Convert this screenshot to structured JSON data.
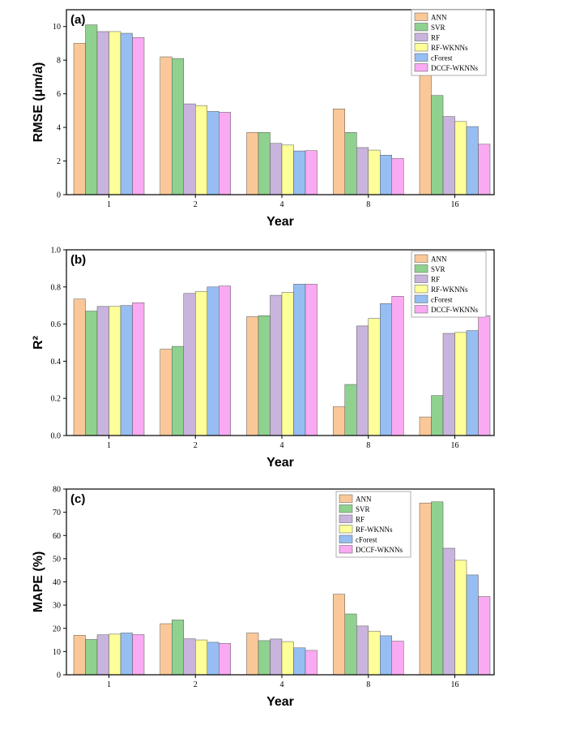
{
  "chart_data": [
    {
      "type": "bar",
      "panel_label": "(a)",
      "categories": [
        "1",
        "2",
        "4",
        "8",
        "16"
      ],
      "xlabel": "Year",
      "ylabel": "RMSE (μm/a)",
      "ylim": [
        0,
        11
      ],
      "yticks": [
        "0",
        "2",
        "4",
        "6",
        "8",
        "10"
      ],
      "legend_position": "top-right",
      "series": [
        {
          "name": "ANN",
          "color": "#FAC898",
          "values": [
            9.0,
            8.2,
            3.7,
            5.1,
            7.2
          ]
        },
        {
          "name": "SVR",
          "color": "#8FD18F",
          "values": [
            10.1,
            8.1,
            3.7,
            3.7,
            5.9
          ]
        },
        {
          "name": "RF",
          "color": "#C8B4DC",
          "values": [
            9.7,
            5.4,
            3.05,
            2.8,
            4.65
          ]
        },
        {
          "name": "RF-WKNNs",
          "color": "#FFFF99",
          "values": [
            9.7,
            5.3,
            2.95,
            2.65,
            4.35
          ]
        },
        {
          "name": "cForest",
          "color": "#96BEF2",
          "values": [
            9.6,
            4.95,
            2.6,
            2.35,
            4.05
          ]
        },
        {
          "name": "DCCF-WKNNs",
          "color": "#F9AAF2",
          "values": [
            9.35,
            4.9,
            2.62,
            2.15,
            3.0
          ]
        }
      ]
    },
    {
      "type": "bar",
      "panel_label": "(b)",
      "categories": [
        "1",
        "2",
        "4",
        "8",
        "16"
      ],
      "xlabel": "Year",
      "ylabel": "R²",
      "ylim": [
        0,
        1.0
      ],
      "yticks": [
        "0.0",
        "0.2",
        "0.4",
        "0.6",
        "0.8",
        "1.0"
      ],
      "legend_position": "top-right",
      "series": [
        {
          "name": "ANN",
          "color": "#FAC898",
          "values": [
            0.735,
            0.465,
            0.64,
            0.155,
            0.1
          ]
        },
        {
          "name": "SVR",
          "color": "#8FD18F",
          "values": [
            0.67,
            0.48,
            0.645,
            0.275,
            0.215
          ]
        },
        {
          "name": "RF",
          "color": "#C8B4DC",
          "values": [
            0.695,
            0.765,
            0.755,
            0.59,
            0.55
          ]
        },
        {
          "name": "RF-WKNNs",
          "color": "#FFFF99",
          "values": [
            0.695,
            0.775,
            0.77,
            0.63,
            0.555
          ]
        },
        {
          "name": "cForest",
          "color": "#96BEF2",
          "values": [
            0.7,
            0.8,
            0.815,
            0.71,
            0.565
          ]
        },
        {
          "name": "DCCF-WKNNs",
          "color": "#F9AAF2",
          "values": [
            0.715,
            0.805,
            0.815,
            0.75,
            0.645
          ]
        }
      ]
    },
    {
      "type": "bar",
      "panel_label": "(c)",
      "categories": [
        "1",
        "2",
        "4",
        "8",
        "16"
      ],
      "xlabel": "Year",
      "ylabel": "MAPE (%)",
      "ylim": [
        0,
        80
      ],
      "yticks": [
        "0",
        "10",
        "20",
        "30",
        "40",
        "50",
        "60",
        "70",
        "80"
      ],
      "legend_position": "top-right",
      "series": [
        {
          "name": "ANN",
          "color": "#FAC898",
          "values": [
            17.0,
            22.0,
            18.0,
            34.7,
            74.0
          ]
        },
        {
          "name": "SVR",
          "color": "#8FD18F",
          "values": [
            15.2,
            23.6,
            14.7,
            26.2,
            74.5
          ]
        },
        {
          "name": "RF",
          "color": "#C8B4DC",
          "values": [
            17.2,
            15.5,
            15.4,
            21.0,
            54.5
          ]
        },
        {
          "name": "RF-WKNNs",
          "color": "#FFFF99",
          "values": [
            17.5,
            15.0,
            14.3,
            18.8,
            49.3
          ]
        },
        {
          "name": "cForest",
          "color": "#96BEF2",
          "values": [
            18.0,
            14.0,
            11.6,
            16.8,
            43.0
          ]
        },
        {
          "name": "DCCF-WKNNs",
          "color": "#F9AAF2",
          "values": [
            17.3,
            13.5,
            10.5,
            14.5,
            33.7
          ]
        }
      ]
    }
  ]
}
